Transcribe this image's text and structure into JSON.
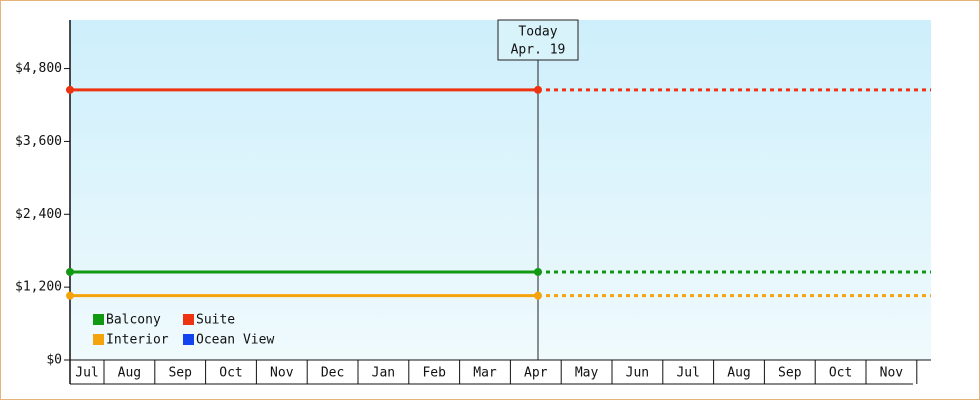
{
  "chart_data": {
    "type": "line",
    "categories": [
      "Jul",
      "Aug",
      "Sep",
      "Oct",
      "Nov",
      "Dec",
      "Jan",
      "Feb",
      "Mar",
      "Apr",
      "May",
      "Jun",
      "Jul",
      "Aug",
      "Sep",
      "Oct",
      "Nov"
    ],
    "series": [
      {
        "name": "Balcony",
        "color": "#119911",
        "values": [
          1450,
          1450,
          1450,
          1450,
          1450,
          1450,
          1450,
          1450,
          1450,
          1450,
          1450,
          1450,
          1450,
          1450,
          1450,
          1450,
          1450
        ]
      },
      {
        "name": "Suite",
        "color": "#ee3311",
        "values": [
          4450,
          4450,
          4450,
          4450,
          4450,
          4450,
          4450,
          4450,
          4450,
          4450,
          4450,
          4450,
          4450,
          4450,
          4450,
          4450,
          4450
        ]
      },
      {
        "name": "Interior",
        "color": "#f5a30a",
        "values": [
          1060,
          1060,
          1060,
          1060,
          1060,
          1060,
          1060,
          1060,
          1060,
          1060,
          1060,
          1060,
          1060,
          1060,
          1060,
          1060,
          1060
        ]
      },
      {
        "name": "Ocean View",
        "color": "#1144ee",
        "values": [
          null,
          null,
          null,
          null,
          null,
          null,
          null,
          null,
          null,
          null,
          null,
          null,
          null,
          null,
          null,
          null,
          null
        ]
      }
    ],
    "today": {
      "title": "Today",
      "date": "Apr. 19",
      "category": 9
    },
    "ylim": [
      0,
      5600
    ],
    "yticks": [
      {
        "value": 0,
        "label": "$0"
      },
      {
        "value": 1200,
        "label": "$1,200"
      },
      {
        "value": 2400,
        "label": "$2,400"
      },
      {
        "value": 3600,
        "label": "$3,600"
      },
      {
        "value": 4800,
        "label": "$4,800"
      }
    ],
    "legend": "lower left"
  }
}
